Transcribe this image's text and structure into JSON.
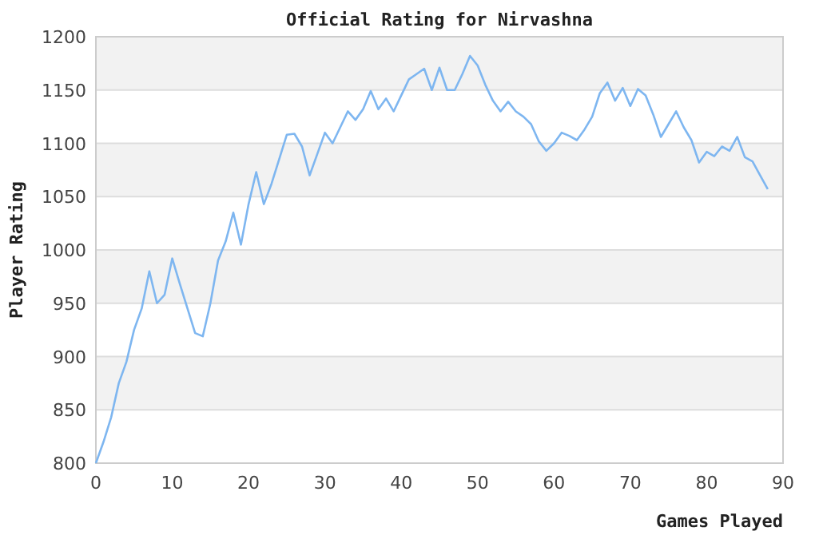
{
  "chart_data": {
    "type": "line",
    "title": "Official Rating for Nirvashna",
    "xlabel": "Games Played",
    "ylabel": "Player Rating",
    "x": [
      0,
      1,
      2,
      3,
      4,
      5,
      6,
      7,
      8,
      9,
      10,
      11,
      12,
      13,
      14,
      15,
      16,
      17,
      18,
      19,
      20,
      21,
      22,
      23,
      24,
      25,
      26,
      27,
      28,
      29,
      30,
      31,
      32,
      33,
      34,
      35,
      36,
      37,
      38,
      39,
      40,
      41,
      42,
      43,
      44,
      45,
      46,
      47,
      48,
      49,
      50,
      51,
      52,
      53,
      54,
      55,
      56,
      57,
      58,
      59,
      60,
      61,
      62,
      63,
      64,
      65,
      66,
      67,
      68,
      69,
      70,
      71,
      72,
      73,
      74,
      75,
      76,
      77,
      78,
      79,
      80,
      81,
      82,
      83,
      84,
      85,
      86,
      87,
      88
    ],
    "series": [
      {
        "color": "#7eb6f0",
        "values": [
          800,
          820,
          843,
          875,
          895,
          925,
          945,
          980,
          950,
          958,
          992,
          968,
          945,
          922,
          919,
          950,
          990,
          1008,
          1035,
          1005,
          1043,
          1073,
          1043,
          1062,
          1085,
          1108,
          1109,
          1097,
          1070,
          1090,
          1110,
          1100,
          1115,
          1130,
          1122,
          1132,
          1149,
          1132,
          1142,
          1130,
          1145,
          1160,
          1165,
          1170,
          1150,
          1171,
          1150,
          1150,
          1165,
          1182,
          1173,
          1155,
          1140,
          1130,
          1139,
          1130,
          1125,
          1118,
          1102,
          1093,
          1100,
          1110,
          1107,
          1103,
          1113,
          1125,
          1147,
          1157,
          1140,
          1152,
          1135,
          1151,
          1145,
          1127,
          1106,
          1118,
          1130,
          1115,
          1103,
          1082,
          1092,
          1088,
          1097,
          1093,
          1106,
          1087,
          1083,
          1070,
          1057
        ]
      }
    ],
    "xlim": [
      0,
      90
    ],
    "xticks": [
      0,
      10,
      20,
      30,
      40,
      50,
      60,
      70,
      80,
      90
    ],
    "ylim": [
      800,
      1200
    ],
    "yticks": [
      800,
      850,
      900,
      950,
      1000,
      1050,
      1100,
      1150,
      1200
    ],
    "grid": "y",
    "marker": "none",
    "line_style": "solid"
  }
}
